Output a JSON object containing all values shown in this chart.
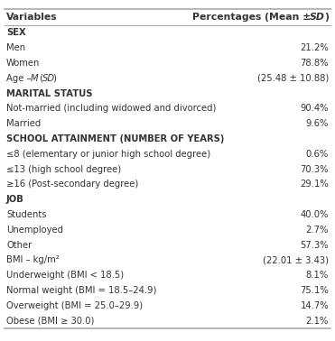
{
  "col1_header": "Variables",
  "col2_header_normal": "Percentages (Mean ± ",
  "col2_header_italic": "SD",
  "col2_header_end": ")",
  "rows": [
    {
      "label": "SEX",
      "value": "",
      "bold": true,
      "age_row": false
    },
    {
      "label": "Men",
      "value": "21.2%",
      "bold": false,
      "age_row": false
    },
    {
      "label": "Women",
      "value": "78.8%",
      "bold": false,
      "age_row": false
    },
    {
      "label": "age_special",
      "value": "(25.48 ± 10.88)",
      "bold": false,
      "age_row": true
    },
    {
      "label": "MARITAL STATUS",
      "value": "",
      "bold": true,
      "age_row": false
    },
    {
      "label": "Not-married (including widowed and divorced)",
      "value": "90.4%",
      "bold": false,
      "age_row": false
    },
    {
      "label": "Married",
      "value": "9.6%",
      "bold": false,
      "age_row": false
    },
    {
      "label": "SCHOOL ATTAINMENT (NUMBER OF YEARS)",
      "value": "",
      "bold": true,
      "age_row": false
    },
    {
      "label": "≤8 (elementary or junior high school degree)",
      "value": "0.6%",
      "bold": false,
      "age_row": false
    },
    {
      "label": "≤13 (high school degree)",
      "value": "70.3%",
      "bold": false,
      "age_row": false
    },
    {
      "label": "≥16 (Post-secondary degree)",
      "value": "29.1%",
      "bold": false,
      "age_row": false
    },
    {
      "label": "JOB",
      "value": "",
      "bold": true,
      "age_row": false
    },
    {
      "label": "Students",
      "value": "40.0%",
      "bold": false,
      "age_row": false
    },
    {
      "label": "Unemployed",
      "value": "2.7%",
      "bold": false,
      "age_row": false
    },
    {
      "label": "Other",
      "value": "57.3%",
      "bold": false,
      "age_row": false
    },
    {
      "label": "BMI – kg/m²",
      "value": "(22.01 ± 3.43)",
      "bold": false,
      "age_row": false
    },
    {
      "label": "Underweight (BMI < 18.5)",
      "value": "8.1%",
      "bold": false,
      "age_row": false
    },
    {
      "label": "Normal weight (BMI = 18.5–24.9)",
      "value": "75.1%",
      "bold": false,
      "age_row": false
    },
    {
      "label": "Overweight (BMI = 25.0–29.9)",
      "value": "14.7%",
      "bold": false,
      "age_row": false
    },
    {
      "label": "Obese (BMI ≥ 30.0)",
      "value": "2.1%",
      "bold": false,
      "age_row": false
    }
  ],
  "bg_color": "#ffffff",
  "text_color": "#333333",
  "border_color": "#aaaaaa",
  "font_size": 7.2,
  "header_font_size": 7.8
}
